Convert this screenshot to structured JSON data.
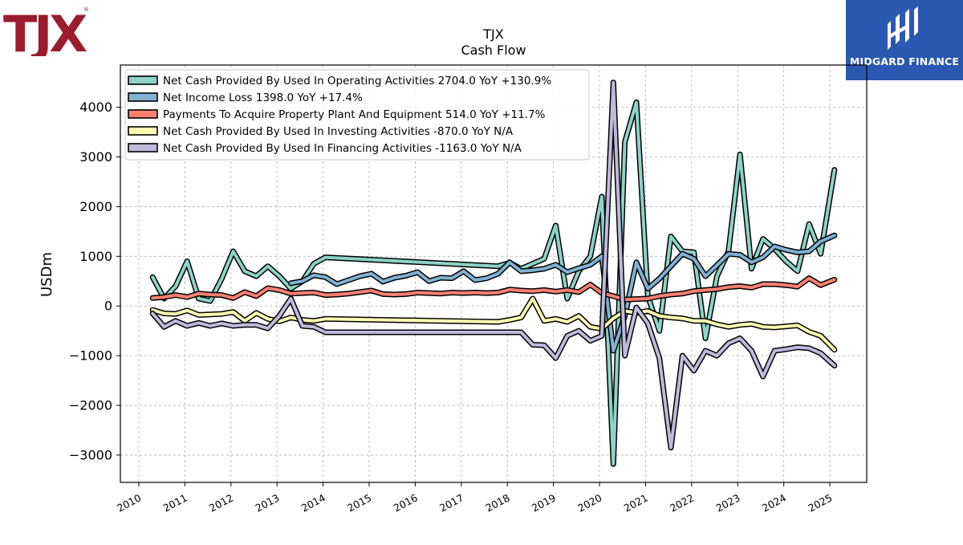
{
  "logos": {
    "left_brand": "TJX",
    "right_brand": "MIDGARD FINANCE"
  },
  "colors": {
    "operating": "#8dd3c7",
    "net_income": "#80b1d3",
    "capex": "#fb8072",
    "investing": "#ffffb3",
    "financing": "#bebada",
    "brand_red": "#9b1c2e",
    "brand_blue": "#2b58b0"
  },
  "chart_data": {
    "type": "line",
    "title": "TJX",
    "subtitle": "Cash Flow",
    "ylabel": "USDm",
    "xlabel": "",
    "xlim": [
      2009.6,
      2025.8
    ],
    "ylim": [
      -3550,
      4850
    ],
    "yticks": [
      -3000,
      -2000,
      -1000,
      0,
      1000,
      2000,
      3000,
      4000
    ],
    "ytick_labels": [
      "−3000",
      "−2000",
      "−1000",
      "0",
      "1000",
      "2000",
      "3000",
      "4000"
    ],
    "xticks": [
      2010,
      2011,
      2012,
      2013,
      2014,
      2015,
      2016,
      2017,
      2018,
      2019,
      2020,
      2021,
      2022,
      2023,
      2024,
      2025
    ],
    "xtick_labels": [
      "2010",
      "2011",
      "2012",
      "2013",
      "2014",
      "2015",
      "2016",
      "2017",
      "2018",
      "2019",
      "2020",
      "2021",
      "2022",
      "2023",
      "2024",
      "2025"
    ],
    "grid": true,
    "legend_position": "top-left",
    "series": [
      {
        "name": "Net Cash Provided By Used In Operating Activities  2704.0 YoY +130.9%",
        "color_key": "operating",
        "points": [
          [
            2010.3,
            580
          ],
          [
            2010.55,
            150
          ],
          [
            2010.8,
            400
          ],
          [
            2011.05,
            900
          ],
          [
            2011.3,
            150
          ],
          [
            2011.55,
            100
          ],
          [
            2011.8,
            550
          ],
          [
            2012.05,
            1100
          ],
          [
            2012.3,
            700
          ],
          [
            2012.55,
            600
          ],
          [
            2012.8,
            800
          ],
          [
            2013.05,
            600
          ],
          [
            2013.3,
            350
          ],
          [
            2013.55,
            500
          ],
          [
            2013.8,
            850
          ],
          [
            2014.05,
            980
          ],
          [
            2017.8,
            800
          ],
          [
            2018.05,
            870
          ],
          [
            2018.3,
            750
          ],
          [
            2018.55,
            850
          ],
          [
            2018.8,
            950
          ],
          [
            2019.05,
            1620
          ],
          [
            2019.3,
            150
          ],
          [
            2019.55,
            700
          ],
          [
            2019.8,
            1000
          ],
          [
            2020.05,
            2200
          ],
          [
            2020.3,
            -3180
          ],
          [
            2020.55,
            3300
          ],
          [
            2020.8,
            4100
          ],
          [
            2021.05,
            200
          ],
          [
            2021.3,
            -500
          ],
          [
            2021.55,
            1400
          ],
          [
            2021.8,
            1100
          ],
          [
            2022.05,
            1080
          ],
          [
            2022.3,
            -650
          ],
          [
            2022.55,
            600
          ],
          [
            2022.8,
            1100
          ],
          [
            2023.05,
            3050
          ],
          [
            2023.3,
            750
          ],
          [
            2023.55,
            1350
          ],
          [
            2023.8,
            1150
          ],
          [
            2024.05,
            900
          ],
          [
            2024.3,
            700
          ],
          [
            2024.55,
            1650
          ],
          [
            2024.8,
            1050
          ],
          [
            2025.1,
            2740
          ]
        ]
      },
      {
        "name": "Net Income Loss  1398.0 YoY +17.4%",
        "color_key": "net_income",
        "points": [
          [
            2013.3,
            460
          ],
          [
            2013.55,
            500
          ],
          [
            2013.8,
            620
          ],
          [
            2014.05,
            580
          ],
          [
            2014.3,
            440
          ],
          [
            2014.55,
            520
          ],
          [
            2014.8,
            600
          ],
          [
            2015.05,
            650
          ],
          [
            2015.3,
            490
          ],
          [
            2015.55,
            570
          ],
          [
            2015.8,
            610
          ],
          [
            2016.05,
            680
          ],
          [
            2016.3,
            500
          ],
          [
            2016.55,
            570
          ],
          [
            2016.8,
            560
          ],
          [
            2017.05,
            700
          ],
          [
            2017.3,
            520
          ],
          [
            2017.55,
            560
          ],
          [
            2017.8,
            650
          ],
          [
            2018.05,
            880
          ],
          [
            2018.3,
            700
          ],
          [
            2018.55,
            720
          ],
          [
            2018.8,
            750
          ],
          [
            2019.05,
            830
          ],
          [
            2019.3,
            680
          ],
          [
            2019.55,
            760
          ],
          [
            2019.8,
            830
          ],
          [
            2020.05,
            1000
          ],
          [
            2020.3,
            -900
          ],
          [
            2020.55,
            -200
          ],
          [
            2020.8,
            880
          ],
          [
            2021.05,
            350
          ],
          [
            2021.3,
            550
          ],
          [
            2021.55,
            800
          ],
          [
            2021.8,
            1050
          ],
          [
            2022.05,
            950
          ],
          [
            2022.3,
            600
          ],
          [
            2022.55,
            820
          ],
          [
            2022.8,
            1050
          ],
          [
            2023.05,
            1030
          ],
          [
            2023.3,
            880
          ],
          [
            2023.55,
            980
          ],
          [
            2023.8,
            1200
          ],
          [
            2024.05,
            1130
          ],
          [
            2024.3,
            1080
          ],
          [
            2024.55,
            1100
          ],
          [
            2024.8,
            1300
          ],
          [
            2025.1,
            1420
          ]
        ]
      },
      {
        "name": "Payments To Acquire Property Plant And Equipment  514.0 YoY +11.7%",
        "color_key": "capex",
        "points": [
          [
            2010.3,
            160
          ],
          [
            2010.55,
            180
          ],
          [
            2010.8,
            220
          ],
          [
            2011.05,
            180
          ],
          [
            2011.3,
            250
          ],
          [
            2011.55,
            230
          ],
          [
            2011.8,
            220
          ],
          [
            2012.05,
            160
          ],
          [
            2012.3,
            280
          ],
          [
            2012.55,
            200
          ],
          [
            2012.8,
            360
          ],
          [
            2013.05,
            320
          ],
          [
            2013.3,
            250
          ],
          [
            2013.55,
            260
          ],
          [
            2013.8,
            270
          ],
          [
            2014.05,
            220
          ],
          [
            2014.3,
            230
          ],
          [
            2014.55,
            250
          ],
          [
            2014.8,
            280
          ],
          [
            2015.05,
            310
          ],
          [
            2015.3,
            240
          ],
          [
            2015.55,
            230
          ],
          [
            2015.8,
            240
          ],
          [
            2016.05,
            270
          ],
          [
            2016.3,
            260
          ],
          [
            2016.55,
            250
          ],
          [
            2016.8,
            270
          ],
          [
            2017.05,
            260
          ],
          [
            2017.3,
            270
          ],
          [
            2017.55,
            260
          ],
          [
            2017.8,
            270
          ],
          [
            2018.05,
            330
          ],
          [
            2018.3,
            310
          ],
          [
            2018.55,
            300
          ],
          [
            2018.8,
            320
          ],
          [
            2019.05,
            290
          ],
          [
            2019.3,
            320
          ],
          [
            2019.55,
            280
          ],
          [
            2019.8,
            430
          ],
          [
            2020.05,
            260
          ],
          [
            2020.3,
            200
          ],
          [
            2020.55,
            130
          ],
          [
            2020.8,
            140
          ],
          [
            2021.05,
            150
          ],
          [
            2021.3,
            200
          ],
          [
            2021.55,
            230
          ],
          [
            2021.8,
            250
          ],
          [
            2022.05,
            300
          ],
          [
            2022.3,
            320
          ],
          [
            2022.55,
            340
          ],
          [
            2022.8,
            380
          ],
          [
            2023.05,
            400
          ],
          [
            2023.3,
            370
          ],
          [
            2023.55,
            440
          ],
          [
            2023.8,
            440
          ],
          [
            2024.05,
            420
          ],
          [
            2024.3,
            390
          ],
          [
            2024.55,
            560
          ],
          [
            2024.8,
            420
          ],
          [
            2025.1,
            530
          ]
        ]
      },
      {
        "name": "Net Cash Provided By Used In Investing Activities  -870.0 YoY N/A",
        "color_key": "investing",
        "points": [
          [
            2010.3,
            -80
          ],
          [
            2010.55,
            -150
          ],
          [
            2010.8,
            -160
          ],
          [
            2011.05,
            -90
          ],
          [
            2011.3,
            -180
          ],
          [
            2011.55,
            -170
          ],
          [
            2011.8,
            -160
          ],
          [
            2012.05,
            -120
          ],
          [
            2012.3,
            -300
          ],
          [
            2012.55,
            -140
          ],
          [
            2012.8,
            -260
          ],
          [
            2013.05,
            -310
          ],
          [
            2013.3,
            -230
          ],
          [
            2013.55,
            -280
          ],
          [
            2013.8,
            -300
          ],
          [
            2014.05,
            -260
          ],
          [
            2017.8,
            -320
          ],
          [
            2018.05,
            -280
          ],
          [
            2018.3,
            -230
          ],
          [
            2018.55,
            150
          ],
          [
            2018.8,
            -300
          ],
          [
            2019.05,
            -260
          ],
          [
            2019.3,
            -320
          ],
          [
            2019.55,
            -200
          ],
          [
            2019.8,
            -420
          ],
          [
            2020.05,
            -460
          ],
          [
            2020.3,
            -250
          ],
          [
            2020.55,
            -100
          ],
          [
            2020.8,
            -140
          ],
          [
            2021.05,
            -100
          ],
          [
            2021.3,
            -200
          ],
          [
            2021.55,
            -230
          ],
          [
            2021.8,
            -250
          ],
          [
            2022.05,
            -300
          ],
          [
            2022.3,
            -300
          ],
          [
            2022.55,
            -370
          ],
          [
            2022.8,
            -420
          ],
          [
            2023.05,
            -380
          ],
          [
            2023.3,
            -360
          ],
          [
            2023.55,
            -420
          ],
          [
            2023.8,
            -430
          ],
          [
            2024.05,
            -410
          ],
          [
            2024.3,
            -390
          ],
          [
            2024.55,
            -520
          ],
          [
            2024.8,
            -600
          ],
          [
            2025.1,
            -880
          ]
        ]
      },
      {
        "name": "Net Cash Provided By Used In Financing Activities  -1163.0 YoY N/A",
        "color_key": "financing",
        "points": [
          [
            2010.3,
            -150
          ],
          [
            2010.55,
            -420
          ],
          [
            2010.8,
            -300
          ],
          [
            2011.05,
            -400
          ],
          [
            2011.3,
            -340
          ],
          [
            2011.55,
            -400
          ],
          [
            2011.8,
            -350
          ],
          [
            2012.05,
            -400
          ],
          [
            2012.3,
            -380
          ],
          [
            2012.55,
            -380
          ],
          [
            2012.8,
            -450
          ],
          [
            2013.05,
            -200
          ],
          [
            2013.3,
            150
          ],
          [
            2013.55,
            -400
          ],
          [
            2013.8,
            -420
          ],
          [
            2014.05,
            -530
          ],
          [
            2017.8,
            -530
          ],
          [
            2018.05,
            -530
          ],
          [
            2018.3,
            -530
          ],
          [
            2018.55,
            -780
          ],
          [
            2018.8,
            -790
          ],
          [
            2019.05,
            -1050
          ],
          [
            2019.3,
            -600
          ],
          [
            2019.55,
            -500
          ],
          [
            2019.8,
            -700
          ],
          [
            2020.05,
            -600
          ],
          [
            2020.3,
            4500
          ],
          [
            2020.55,
            -1000
          ],
          [
            2020.8,
            -30
          ],
          [
            2021.05,
            -350
          ],
          [
            2021.3,
            -1050
          ],
          [
            2021.55,
            -2850
          ],
          [
            2021.8,
            -1000
          ],
          [
            2022.05,
            -1300
          ],
          [
            2022.3,
            -900
          ],
          [
            2022.55,
            -1000
          ],
          [
            2022.8,
            -750
          ],
          [
            2023.05,
            -650
          ],
          [
            2023.3,
            -900
          ],
          [
            2023.55,
            -1420
          ],
          [
            2023.8,
            -900
          ],
          [
            2024.05,
            -870
          ],
          [
            2024.3,
            -830
          ],
          [
            2024.55,
            -850
          ],
          [
            2024.8,
            -950
          ],
          [
            2025.1,
            -1200
          ]
        ]
      }
    ]
  }
}
